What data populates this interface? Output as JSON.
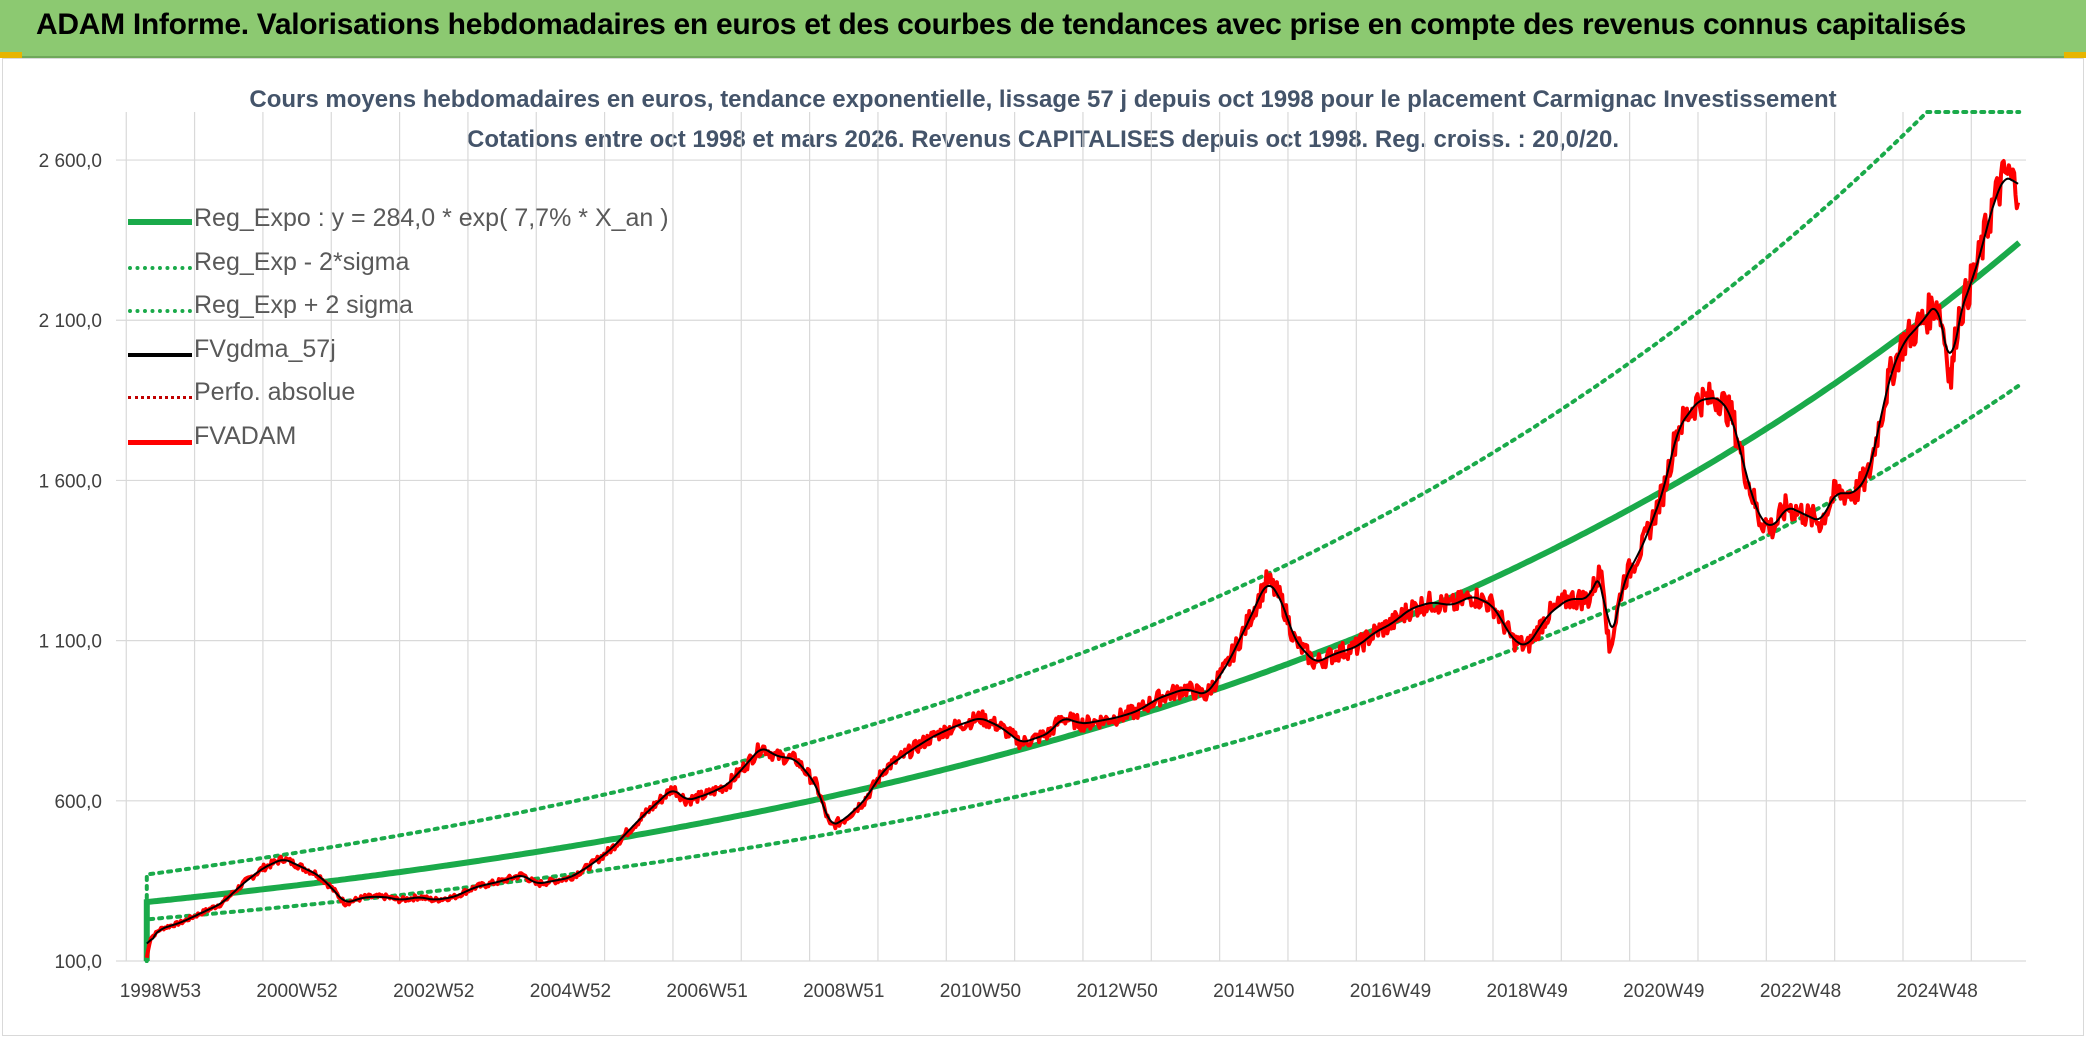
{
  "header": {
    "title": "ADAM Informe. Valorisations hebdomadaires en euros et des courbes de tendances avec prise en compte des revenus connus capitalisés"
  },
  "colors": {
    "header_bg": "#8cc971",
    "trend": "#1aaa4a",
    "smooth": "#000000",
    "fvadam": "#ff0000",
    "perfo": "#c00000"
  },
  "chart_data": {
    "type": "line",
    "title": "Cours moyens hebdomadaires en euros, tendance exponentielle, lissage 57 j depuis oct 1998 pour le placement Carmignac Investissement",
    "subtitle": "Cotations entre oct 1998 et mars 2026. Revenus CAPITALISES depuis oct 1998. Reg. croiss. : 20,0/20.",
    "x_range": [
      1998.8,
      2026.2
    ],
    "ylim": [
      100,
      2750
    ],
    "y_ticks": [
      100,
      600,
      1100,
      1600,
      2100,
      2600
    ],
    "y_tick_labels": [
      "100,0",
      "600,0",
      "1 100,0",
      "1 600,0",
      "2 100,0",
      "2 600,0"
    ],
    "x_tick_years": [
      1999.0,
      2001.0,
      2003.0,
      2005.0,
      2007.0,
      2009.0,
      2011.0,
      2013.0,
      2015.0,
      2017.0,
      2019.0,
      2021.0,
      2023.0,
      2025.0
    ],
    "x_tick_labels": [
      "1998W53",
      "2000W52",
      "2002W52",
      "2004W52",
      "2006W51",
      "2008W51",
      "2010W50",
      "2012W50",
      "2014W50",
      "2016W49",
      "2018W49",
      "2020W49",
      "2022W48",
      "2024W48"
    ],
    "grid": true,
    "legend_position": "top-left",
    "series": [
      {
        "name": "Reg_Expo : y = 284,0 * exp( 7,7% *  X_an )",
        "style": "trend-solid",
        "kind": "exponential",
        "a": 284.0,
        "rate": 0.077,
        "x0": 1998.8
      },
      {
        "name": "Reg_Exp - 2*sigma",
        "style": "trend-dotted",
        "kind": "exponential",
        "a": 230.0,
        "rate": 0.077,
        "x0": 1998.8
      },
      {
        "name": "Reg_Exp + 2 sigma",
        "style": "trend-dotted",
        "kind": "exponential",
        "a": 370.0,
        "rate": 0.077,
        "x0": 1998.8
      },
      {
        "name": "FVgdma_57j",
        "style": "smooth-black"
      },
      {
        "name": "Perfo. absolue",
        "style": "perfo-dotted"
      },
      {
        "name": "FVADAM",
        "style": "price-red"
      }
    ],
    "fvadam_points": [
      [
        1998.8,
        110
      ],
      [
        1998.85,
        170
      ],
      [
        1999.0,
        200
      ],
      [
        1999.3,
        220
      ],
      [
        1999.6,
        250
      ],
      [
        1999.9,
        280
      ],
      [
        2000.2,
        340
      ],
      [
        2000.5,
        390
      ],
      [
        2000.8,
        420
      ],
      [
        2001.0,
        400
      ],
      [
        2001.3,
        370
      ],
      [
        2001.5,
        330
      ],
      [
        2001.7,
        280
      ],
      [
        2002.0,
        300
      ],
      [
        2002.3,
        300
      ],
      [
        2002.5,
        290
      ],
      [
        2002.8,
        300
      ],
      [
        2003.0,
        290
      ],
      [
        2003.3,
        300
      ],
      [
        2003.6,
        330
      ],
      [
        2004.0,
        350
      ],
      [
        2004.3,
        370
      ],
      [
        2004.5,
        340
      ],
      [
        2005.0,
        360
      ],
      [
        2005.3,
        400
      ],
      [
        2005.6,
        450
      ],
      [
        2006.0,
        540
      ],
      [
        2006.3,
        600
      ],
      [
        2006.5,
        640
      ],
      [
        2006.7,
        600
      ],
      [
        2007.0,
        620
      ],
      [
        2007.3,
        650
      ],
      [
        2007.6,
        720
      ],
      [
        2007.8,
        770
      ],
      [
        2008.0,
        740
      ],
      [
        2008.3,
        730
      ],
      [
        2008.6,
        650
      ],
      [
        2008.8,
        520
      ],
      [
        2009.0,
        540
      ],
      [
        2009.3,
        600
      ],
      [
        2009.6,
        700
      ],
      [
        2010.0,
        760
      ],
      [
        2010.3,
        800
      ],
      [
        2010.6,
        830
      ],
      [
        2011.0,
        860
      ],
      [
        2011.3,
        830
      ],
      [
        2011.6,
        780
      ],
      [
        2012.0,
        810
      ],
      [
        2012.2,
        860
      ],
      [
        2012.5,
        840
      ],
      [
        2013.0,
        860
      ],
      [
        2013.3,
        880
      ],
      [
        2013.6,
        920
      ],
      [
        2014.0,
        950
      ],
      [
        2014.3,
        930
      ],
      [
        2014.6,
        1020
      ],
      [
        2014.9,
        1150
      ],
      [
        2015.2,
        1290
      ],
      [
        2015.4,
        1230
      ],
      [
        2015.6,
        1100
      ],
      [
        2015.9,
        1030
      ],
      [
        2016.2,
        1060
      ],
      [
        2016.5,
        1080
      ],
      [
        2016.8,
        1130
      ],
      [
        2017.0,
        1150
      ],
      [
        2017.3,
        1200
      ],
      [
        2017.6,
        1220
      ],
      [
        2017.9,
        1210
      ],
      [
        2018.2,
        1240
      ],
      [
        2018.5,
        1210
      ],
      [
        2018.8,
        1100
      ],
      [
        2019.0,
        1080
      ],
      [
        2019.3,
        1180
      ],
      [
        2019.6,
        1230
      ],
      [
        2019.9,
        1230
      ],
      [
        2020.1,
        1330
      ],
      [
        2020.2,
        1060
      ],
      [
        2020.4,
        1280
      ],
      [
        2020.7,
        1400
      ],
      [
        2021.0,
        1570
      ],
      [
        2021.2,
        1760
      ],
      [
        2021.5,
        1850
      ],
      [
        2021.8,
        1860
      ],
      [
        2022.0,
        1800
      ],
      [
        2022.2,
        1620
      ],
      [
        2022.4,
        1480
      ],
      [
        2022.6,
        1450
      ],
      [
        2022.8,
        1520
      ],
      [
        2023.0,
        1500
      ],
      [
        2023.3,
        1470
      ],
      [
        2023.5,
        1560
      ],
      [
        2023.8,
        1560
      ],
      [
        2024.0,
        1620
      ],
      [
        2024.3,
        1920
      ],
      [
        2024.5,
        2030
      ],
      [
        2024.8,
        2100
      ],
      [
        2025.0,
        2160
      ],
      [
        2025.1,
        2060
      ],
      [
        2025.2,
        1910
      ],
      [
        2025.3,
        2100
      ],
      [
        2025.6,
        2280
      ],
      [
        2025.8,
        2450
      ],
      [
        2026.0,
        2560
      ],
      [
        2026.2,
        2510
      ]
    ]
  },
  "legend_labels": [
    "Reg_Expo : y = 284,0 * exp( 7,7% *  X_an )",
    "Reg_Exp - 2*sigma",
    "Reg_Exp + 2 sigma",
    "FVgdma_57j",
    "Perfo. absolue",
    "FVADAM"
  ]
}
